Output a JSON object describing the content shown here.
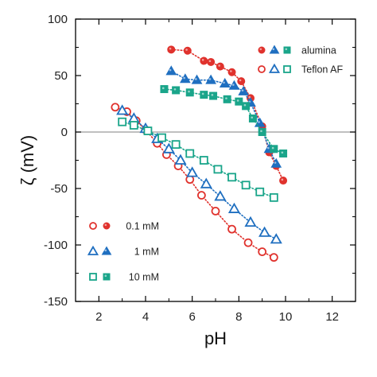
{
  "colors": {
    "red": "#e0322d",
    "blue": "#1f6fc0",
    "green": "#1aa58a",
    "zero_line": "#9a9a9a"
  },
  "chart_data": {
    "type": "scatter",
    "xlabel": "pH",
    "ylabel": "ζ (mV)",
    "xlim": [
      1,
      13
    ],
    "ylim": [
      -150,
      100
    ],
    "xticks": [
      2,
      4,
      6,
      8,
      10,
      12
    ],
    "yticks": [
      -150,
      -100,
      -50,
      0,
      50,
      100
    ],
    "zero_line": true,
    "legends": {
      "material": {
        "placement": "top-right",
        "entries": [
          {
            "label": "alumina",
            "marker": "filled"
          },
          {
            "label": "Teflon AF",
            "marker": "open"
          }
        ]
      },
      "concentration": {
        "placement": "bottom-left",
        "entries": [
          {
            "label": "0.1 mM",
            "series_color": "red",
            "symbol": "circle"
          },
          {
            "label": "1 mM",
            "series_color": "blue",
            "symbol": "triangle"
          },
          {
            "label": "10 mM",
            "series_color": "green",
            "symbol": "square"
          }
        ]
      }
    },
    "series": [
      {
        "material": "alumina",
        "concentration": "0.1 mM",
        "color": "red",
        "symbol": "circle",
        "fill": "filled",
        "x": [
          5.1,
          5.8,
          6.5,
          6.8,
          7.2,
          7.7,
          8.1,
          8.5,
          9.0,
          9.3,
          9.6,
          9.9
        ],
        "y": [
          73,
          72,
          63,
          62,
          58,
          53,
          45,
          30,
          5,
          -18,
          -30,
          -43
        ]
      },
      {
        "material": "alumina",
        "concentration": "1 mM",
        "color": "blue",
        "symbol": "triangle",
        "fill": "filled",
        "x": [
          5.1,
          5.7,
          6.2,
          6.8,
          7.4,
          7.8,
          8.2,
          8.5,
          8.9,
          9.3,
          9.6
        ],
        "y": [
          54,
          47,
          46,
          46,
          43,
          41,
          36,
          26,
          8,
          -15,
          -28
        ]
      },
      {
        "material": "alumina",
        "concentration": "10 mM",
        "color": "green",
        "symbol": "square",
        "fill": "filled",
        "x": [
          4.8,
          5.3,
          5.9,
          6.5,
          6.9,
          7.5,
          8.0,
          8.3,
          8.6,
          9.0,
          9.5,
          9.9
        ],
        "y": [
          38,
          37,
          35,
          33,
          32,
          29,
          27,
          23,
          12,
          0,
          -15,
          -19
        ]
      },
      {
        "material": "Teflon AF",
        "concentration": "0.1 mM",
        "color": "red",
        "symbol": "circle",
        "fill": "open",
        "x": [
          2.7,
          3.2,
          3.6,
          4.0,
          4.5,
          4.9,
          5.4,
          5.9,
          6.4,
          7.0,
          7.7,
          8.4,
          9.0,
          9.5
        ],
        "y": [
          22,
          18,
          10,
          2,
          -10,
          -20,
          -30,
          -42,
          -56,
          -70,
          -86,
          -98,
          -106,
          -111
        ]
      },
      {
        "material": "Teflon AF",
        "concentration": "1 mM",
        "color": "blue",
        "symbol": "triangle",
        "fill": "open",
        "x": [
          3.0,
          3.5,
          4.0,
          4.5,
          5.0,
          5.5,
          6.0,
          6.6,
          7.2,
          7.8,
          8.5,
          9.1,
          9.6
        ],
        "y": [
          19,
          12,
          3,
          -6,
          -15,
          -25,
          -36,
          -46,
          -57,
          -68,
          -80,
          -89,
          -95
        ]
      },
      {
        "material": "Teflon AF",
        "concentration": "10 mM",
        "color": "green",
        "symbol": "square",
        "fill": "open",
        "x": [
          3.0,
          3.5,
          4.1,
          4.7,
          5.3,
          5.9,
          6.5,
          7.1,
          7.7,
          8.3,
          8.9,
          9.5
        ],
        "y": [
          9,
          6,
          1,
          -5,
          -11,
          -19,
          -25,
          -33,
          -40,
          -47,
          -53,
          -58
        ]
      }
    ]
  }
}
